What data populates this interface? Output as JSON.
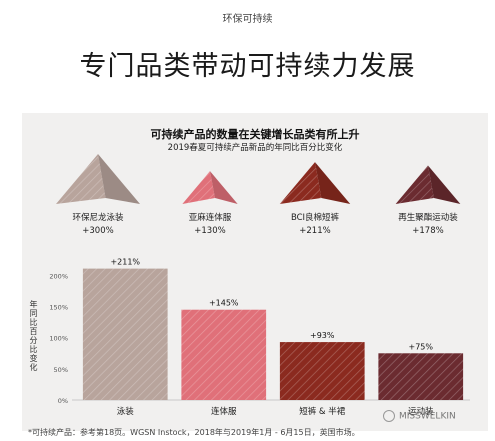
{
  "header": {
    "section_label": "环保可持续",
    "headline": "专门品类带动可持续力发展"
  },
  "chart_data": {
    "type": "bar",
    "title": "可持续产品的数量在关键增长品类有所上升",
    "subtitle": "2019春夏可持续产品新品的年同比百分比变化",
    "ylabel": "年同比百分比变化",
    "ylim": [
      0,
      220
    ],
    "yticks": [
      {
        "value": 0,
        "label": "0%"
      },
      {
        "value": 50,
        "label": "50%"
      },
      {
        "value": 100,
        "label": "100%"
      },
      {
        "value": 150,
        "label": "150%"
      },
      {
        "value": 200,
        "label": "200%"
      }
    ],
    "categories": [
      "泳装",
      "连体服",
      "短裤 & 半裙",
      "运动装"
    ],
    "values": [
      211,
      145,
      93,
      75
    ],
    "value_labels": [
      "+211%",
      "+145%",
      "+93%",
      "+75%"
    ],
    "colors": [
      "#b8a49c",
      "#e07079",
      "#8b2a1f",
      "#6b2b30"
    ],
    "pattern": "diagonal-stripes",
    "highlights": [
      {
        "label": "环保尼龙泳装",
        "value": 300,
        "value_label": "+300%",
        "color": "#b8a49c"
      },
      {
        "label": "亚麻连体服",
        "value": 130,
        "value_label": "+130%",
        "color": "#e07079"
      },
      {
        "label": "BCI良棉短裤",
        "value": 211,
        "value_label": "+211%",
        "color": "#8b2a1f"
      },
      {
        "label": "再生聚酯运动装",
        "value": 178,
        "value_label": "+178%",
        "color": "#6b2b30"
      }
    ]
  },
  "footnote": "*可持续产品：参考第18页。WGSN Instock，2018年与2019年1月 - 6月15日，英国市场。",
  "watermark": "MISSWELKIN"
}
